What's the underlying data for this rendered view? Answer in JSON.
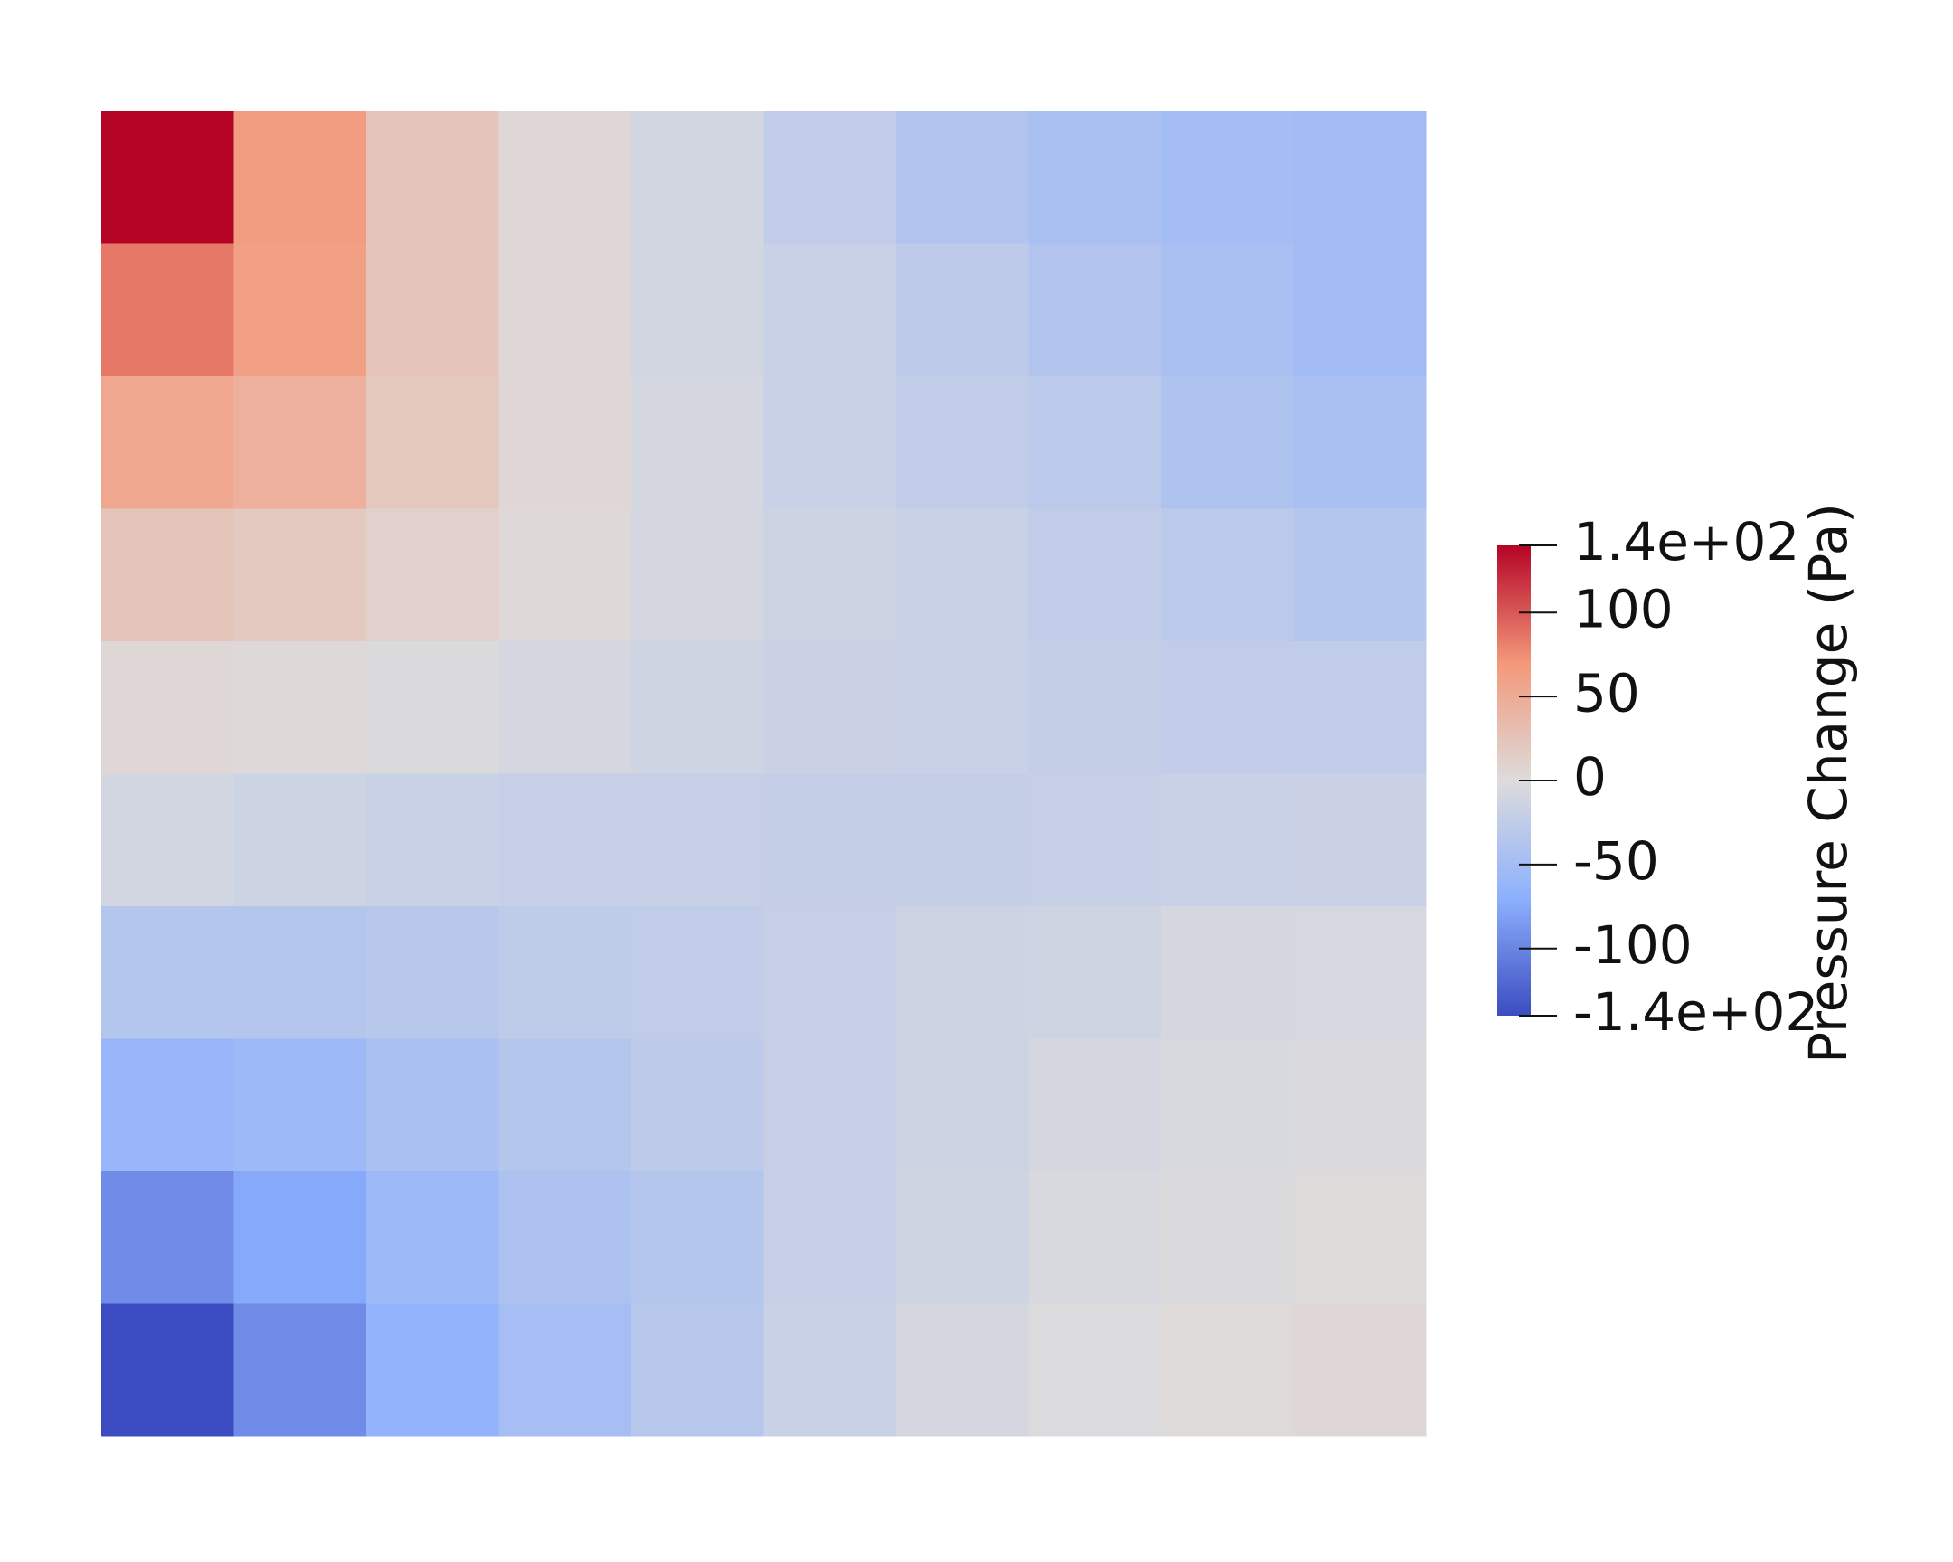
{
  "chart_data": {
    "type": "heatmap",
    "z": [
      [
        140,
        65,
        25,
        5,
        -10,
        -25,
        -38,
        -45,
        -50,
        -52
      ],
      [
        85,
        62,
        25,
        5,
        -10,
        -18,
        -28,
        -38,
        -45,
        -52
      ],
      [
        55,
        45,
        22,
        5,
        -8,
        -18,
        -25,
        -30,
        -40,
        -45
      ],
      [
        25,
        20,
        12,
        3,
        -8,
        -15,
        -18,
        -25,
        -30,
        -35
      ],
      [
        5,
        3,
        -3,
        -8,
        -12,
        -17,
        -18,
        -22,
        -25,
        -25
      ],
      [
        -10,
        -15,
        -18,
        -20,
        -20,
        -22,
        -22,
        -20,
        -18,
        -17
      ],
      [
        -35,
        -35,
        -32,
        -27,
        -25,
        -20,
        -15,
        -12,
        -8,
        -7
      ],
      [
        -60,
        -55,
        -45,
        -35,
        -28,
        -20,
        -15,
        -8,
        -5,
        -3
      ],
      [
        -95,
        -75,
        -55,
        -42,
        -35,
        -20,
        -12,
        -5,
        -3,
        2
      ],
      [
        -140,
        -95,
        -65,
        -48,
        -33,
        -18,
        -8,
        -2,
        2,
        5
      ]
    ],
    "colorbar_title": "Pressure Change (Pa)",
    "clim": [
      -140,
      140
    ],
    "cticks": [
      {
        "value": 140,
        "label": "1.4e+02"
      },
      100,
      50,
      0,
      -50,
      -100,
      {
        "value": -140,
        "label": "-1.4e+02"
      }
    ],
    "colorscale": [
      "#3b4cc0",
      "#8db0fe",
      "#dddcdc",
      "#f4987a",
      "#b40426"
    ]
  }
}
